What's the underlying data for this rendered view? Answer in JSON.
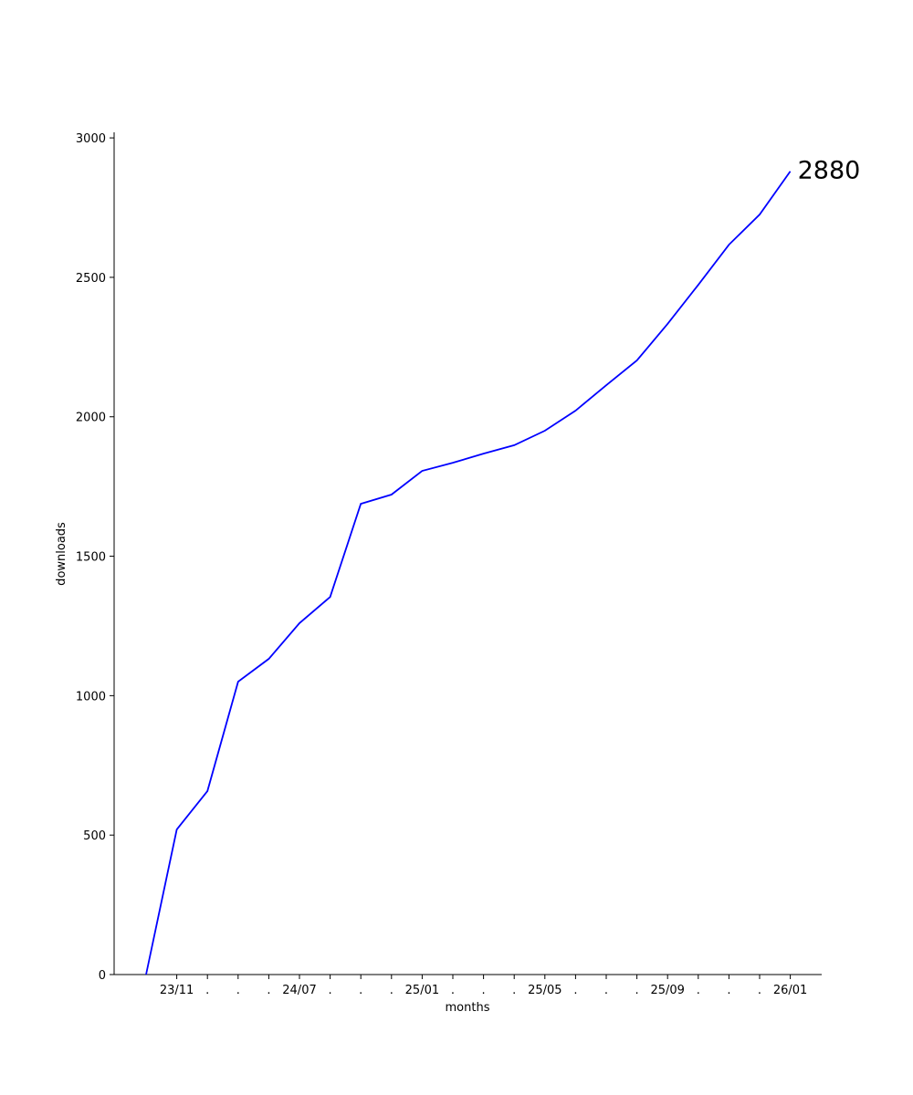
{
  "chart_data": {
    "type": "line",
    "x_label": "months",
    "y_label": "downloads",
    "categories": [
      null,
      "23/11",
      ".",
      ".",
      ".",
      "24/07",
      ".",
      ".",
      ".",
      "25/01",
      ".",
      ".",
      ".",
      "25/05",
      ".",
      ".",
      ".",
      "25/09",
      ".",
      ".",
      ".",
      "26/01"
    ],
    "series": [
      {
        "name": "downloads",
        "color": "#0000ff",
        "values": [
          0,
          520,
          658,
          1050,
          1132,
          1260,
          1354,
          1688,
          1721,
          1806,
          1835,
          1868,
          1898,
          1950,
          2022,
          2113,
          2202,
          2333,
          2473,
          2617,
          2725,
          2880
        ]
      }
    ],
    "ylim": [
      0,
      3020
    ],
    "yticks": [
      0,
      500,
      1000,
      1500,
      2000,
      2500,
      3000
    ],
    "grid": false,
    "annotate_last": true
  }
}
